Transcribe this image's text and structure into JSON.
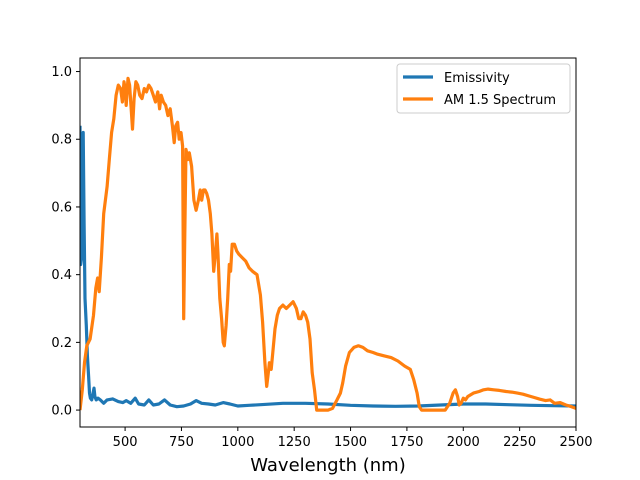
{
  "chart_data": {
    "type": "line",
    "title": "",
    "xlabel": "Wavelength (nm)",
    "ylabel": "",
    "xlim": [
      300,
      2500
    ],
    "ylim": [
      -0.05,
      1.04
    ],
    "grid": false,
    "legend_placement": "top-right",
    "x_ticks": [
      500,
      750,
      1000,
      1250,
      1500,
      1750,
      2000,
      2250,
      2500
    ],
    "x_tick_labels": [
      "500",
      "750",
      "1000",
      "1250",
      "1500",
      "1750",
      "2000",
      "2250",
      "2500"
    ],
    "y_ticks": [
      0.0,
      0.2,
      0.4,
      0.6,
      0.8,
      1.0
    ],
    "y_tick_labels": [
      "0.0",
      "0.2",
      "0.4",
      "0.6",
      "0.8",
      "1.0"
    ],
    "series": [
      {
        "name": "Emissivity",
        "color": "#1f77b4",
        "points": [
          [
            300,
            0.84
          ],
          [
            303,
            0.43
          ],
          [
            307,
            0.45
          ],
          [
            310,
            0.8
          ],
          [
            314,
            0.82
          ],
          [
            318,
            0.55
          ],
          [
            322,
            0.33
          ],
          [
            328,
            0.25
          ],
          [
            333,
            0.16
          ],
          [
            338,
            0.1
          ],
          [
            342,
            0.05
          ],
          [
            346,
            0.035
          ],
          [
            352,
            0.03
          ],
          [
            358,
            0.05
          ],
          [
            362,
            0.065
          ],
          [
            366,
            0.04
          ],
          [
            372,
            0.03
          ],
          [
            380,
            0.035
          ],
          [
            390,
            0.03
          ],
          [
            405,
            0.02
          ],
          [
            420,
            0.03
          ],
          [
            445,
            0.033
          ],
          [
            470,
            0.025
          ],
          [
            490,
            0.022
          ],
          [
            505,
            0.028
          ],
          [
            525,
            0.02
          ],
          [
            545,
            0.035
          ],
          [
            560,
            0.018
          ],
          [
            585,
            0.015
          ],
          [
            605,
            0.03
          ],
          [
            625,
            0.015
          ],
          [
            650,
            0.018
          ],
          [
            675,
            0.03
          ],
          [
            700,
            0.015
          ],
          [
            730,
            0.01
          ],
          [
            760,
            0.012
          ],
          [
            790,
            0.018
          ],
          [
            815,
            0.028
          ],
          [
            840,
            0.02
          ],
          [
            870,
            0.018
          ],
          [
            900,
            0.015
          ],
          [
            935,
            0.022
          ],
          [
            965,
            0.018
          ],
          [
            1000,
            0.012
          ],
          [
            1050,
            0.014
          ],
          [
            1100,
            0.016
          ],
          [
            1200,
            0.02
          ],
          [
            1300,
            0.02
          ],
          [
            1400,
            0.018
          ],
          [
            1500,
            0.014
          ],
          [
            1600,
            0.012
          ],
          [
            1700,
            0.011
          ],
          [
            1800,
            0.012
          ],
          [
            1900,
            0.015
          ],
          [
            2000,
            0.018
          ],
          [
            2100,
            0.018
          ],
          [
            2200,
            0.016
          ],
          [
            2300,
            0.014
          ],
          [
            2400,
            0.013
          ],
          [
            2500,
            0.012
          ]
        ]
      },
      {
        "name": "AM 1.5 Spectrum",
        "color": "#ff7f0e",
        "points": [
          [
            300,
            0.0
          ],
          [
            310,
            0.06
          ],
          [
            320,
            0.14
          ],
          [
            330,
            0.19
          ],
          [
            345,
            0.21
          ],
          [
            360,
            0.28
          ],
          [
            370,
            0.36
          ],
          [
            378,
            0.39
          ],
          [
            385,
            0.35
          ],
          [
            395,
            0.45
          ],
          [
            405,
            0.58
          ],
          [
            420,
            0.66
          ],
          [
            430,
            0.74
          ],
          [
            440,
            0.82
          ],
          [
            450,
            0.86
          ],
          [
            460,
            0.93
          ],
          [
            470,
            0.96
          ],
          [
            480,
            0.95
          ],
          [
            488,
            0.91
          ],
          [
            495,
            0.97
          ],
          [
            500,
            0.95
          ],
          [
            505,
            0.9
          ],
          [
            513,
            0.98
          ],
          [
            520,
            0.96
          ],
          [
            528,
            0.88
          ],
          [
            533,
            0.83
          ],
          [
            540,
            0.92
          ],
          [
            548,
            0.97
          ],
          [
            556,
            0.96
          ],
          [
            565,
            0.93
          ],
          [
            575,
            0.92
          ],
          [
            585,
            0.95
          ],
          [
            595,
            0.94
          ],
          [
            605,
            0.96
          ],
          [
            615,
            0.95
          ],
          [
            625,
            0.93
          ],
          [
            635,
            0.91
          ],
          [
            645,
            0.94
          ],
          [
            653,
            0.89
          ],
          [
            660,
            0.93
          ],
          [
            670,
            0.91
          ],
          [
            680,
            0.9
          ],
          [
            690,
            0.87
          ],
          [
            700,
            0.89
          ],
          [
            710,
            0.84
          ],
          [
            718,
            0.79
          ],
          [
            725,
            0.84
          ],
          [
            733,
            0.85
          ],
          [
            740,
            0.8
          ],
          [
            748,
            0.82
          ],
          [
            755,
            0.78
          ],
          [
            760,
            0.27
          ],
          [
            765,
            0.52
          ],
          [
            770,
            0.77
          ],
          [
            778,
            0.74
          ],
          [
            785,
            0.76
          ],
          [
            795,
            0.72
          ],
          [
            805,
            0.62
          ],
          [
            815,
            0.59
          ],
          [
            825,
            0.62
          ],
          [
            833,
            0.65
          ],
          [
            840,
            0.62
          ],
          [
            848,
            0.65
          ],
          [
            855,
            0.65
          ],
          [
            862,
            0.64
          ],
          [
            870,
            0.62
          ],
          [
            878,
            0.58
          ],
          [
            885,
            0.52
          ],
          [
            893,
            0.41
          ],
          [
            900,
            0.46
          ],
          [
            907,
            0.52
          ],
          [
            912,
            0.46
          ],
          [
            920,
            0.33
          ],
          [
            928,
            0.27
          ],
          [
            935,
            0.2
          ],
          [
            940,
            0.19
          ],
          [
            948,
            0.25
          ],
          [
            955,
            0.33
          ],
          [
            962,
            0.43
          ],
          [
            968,
            0.41
          ],
          [
            975,
            0.49
          ],
          [
            985,
            0.49
          ],
          [
            995,
            0.47
          ],
          [
            1005,
            0.46
          ],
          [
            1020,
            0.45
          ],
          [
            1035,
            0.44
          ],
          [
            1050,
            0.42
          ],
          [
            1065,
            0.41
          ],
          [
            1085,
            0.4
          ],
          [
            1100,
            0.34
          ],
          [
            1110,
            0.26
          ],
          [
            1120,
            0.14
          ],
          [
            1128,
            0.07
          ],
          [
            1135,
            0.11
          ],
          [
            1140,
            0.14
          ],
          [
            1148,
            0.12
          ],
          [
            1155,
            0.17
          ],
          [
            1165,
            0.24
          ],
          [
            1175,
            0.28
          ],
          [
            1185,
            0.3
          ],
          [
            1200,
            0.31
          ],
          [
            1215,
            0.3
          ],
          [
            1230,
            0.31
          ],
          [
            1245,
            0.32
          ],
          [
            1260,
            0.3
          ],
          [
            1270,
            0.27
          ],
          [
            1280,
            0.27
          ],
          [
            1290,
            0.29
          ],
          [
            1300,
            0.28
          ],
          [
            1310,
            0.26
          ],
          [
            1320,
            0.21
          ],
          [
            1330,
            0.11
          ],
          [
            1340,
            0.06
          ],
          [
            1350,
            0.0
          ],
          [
            1400,
            0.0
          ],
          [
            1420,
            0.005
          ],
          [
            1440,
            0.03
          ],
          [
            1455,
            0.05
          ],
          [
            1465,
            0.08
          ],
          [
            1478,
            0.13
          ],
          [
            1495,
            0.17
          ],
          [
            1515,
            0.185
          ],
          [
            1535,
            0.19
          ],
          [
            1555,
            0.185
          ],
          [
            1575,
            0.175
          ],
          [
            1600,
            0.17
          ],
          [
            1620,
            0.165
          ],
          [
            1650,
            0.16
          ],
          [
            1680,
            0.155
          ],
          [
            1710,
            0.145
          ],
          [
            1740,
            0.13
          ],
          [
            1765,
            0.12
          ],
          [
            1780,
            0.09
          ],
          [
            1795,
            0.05
          ],
          [
            1805,
            0.01
          ],
          [
            1815,
            0.0
          ],
          [
            1900,
            0.0
          ],
          [
            1920,
            0.0
          ],
          [
            1940,
            0.02
          ],
          [
            1955,
            0.05
          ],
          [
            1965,
            0.06
          ],
          [
            1975,
            0.04
          ],
          [
            1982,
            0.015
          ],
          [
            1990,
            0.02
          ],
          [
            2000,
            0.035
          ],
          [
            2010,
            0.03
          ],
          [
            2020,
            0.04
          ],
          [
            2045,
            0.05
          ],
          [
            2070,
            0.055
          ],
          [
            2090,
            0.06
          ],
          [
            2110,
            0.062
          ],
          [
            2135,
            0.06
          ],
          [
            2160,
            0.058
          ],
          [
            2190,
            0.055
          ],
          [
            2215,
            0.053
          ],
          [
            2240,
            0.05
          ],
          [
            2265,
            0.047
          ],
          [
            2290,
            0.042
          ],
          [
            2315,
            0.037
          ],
          [
            2340,
            0.032
          ],
          [
            2365,
            0.028
          ],
          [
            2385,
            0.03
          ],
          [
            2405,
            0.02
          ],
          [
            2430,
            0.022
          ],
          [
            2455,
            0.015
          ],
          [
            2480,
            0.01
          ],
          [
            2500,
            0.005
          ]
        ]
      }
    ]
  }
}
